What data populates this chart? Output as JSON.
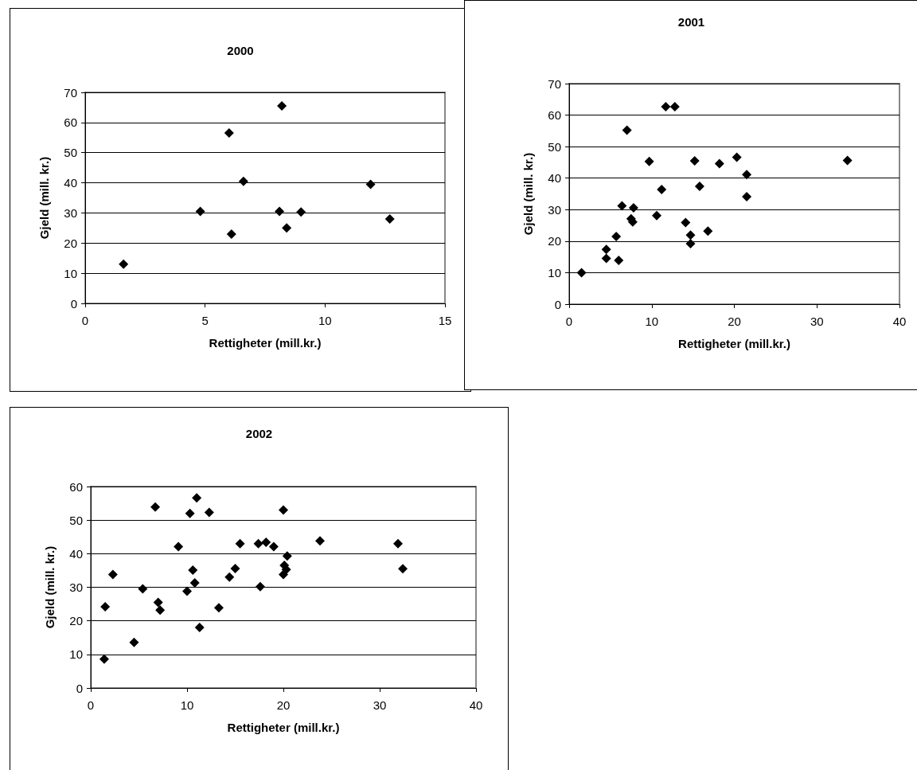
{
  "chart_data": [
    {
      "type": "scatter",
      "title": "2000",
      "xlabel": "Rettigheter (mill.kr.)",
      "ylabel": "Gjeld (mill. kr.)",
      "color": "#000000",
      "marker": "diamond",
      "grid": "y",
      "xlim": [
        0,
        15
      ],
      "ylim": [
        0,
        70
      ],
      "xticks": [
        0,
        5,
        10,
        15
      ],
      "yticks": [
        0,
        10,
        20,
        30,
        40,
        50,
        60,
        70
      ],
      "x": [
        1.6,
        4.8,
        6.0,
        6.1,
        6.6,
        8.0,
        8.1,
        8.2,
        8.4,
        9.0,
        11.9,
        12.7
      ],
      "values": [
        13,
        30.5,
        56.5,
        23,
        40.5,
        null,
        30.5,
        65.5,
        25,
        30.3,
        39.5,
        28
      ]
    },
    {
      "type": "scatter",
      "title": "2001",
      "xlabel": "Rettigheter (mill.kr.)",
      "ylabel": "Gjeld (mill. kr.)",
      "color": "#000000",
      "marker": "diamond",
      "grid": "y",
      "xlim": [
        0,
        40
      ],
      "ylim": [
        0,
        70
      ],
      "xticks": [
        0,
        10,
        20,
        30,
        40
      ],
      "yticks": [
        0,
        10,
        20,
        30,
        40,
        50,
        60,
        70
      ],
      "x": [
        1.5,
        4.5,
        4.5,
        6.0,
        5.7,
        6.4,
        7.8,
        7.5,
        7.7,
        7.0,
        9.7,
        10.6,
        11.2,
        11.7,
        12.8,
        14.1,
        14.7,
        14.7,
        15.2,
        15.8,
        16.8,
        18.2,
        20.3,
        21.5,
        21.5,
        33.7
      ],
      "values": [
        10,
        17.4,
        14.5,
        13.9,
        21.5,
        31.2,
        30.6,
        27.1,
        26.1,
        55.2,
        45.3,
        28.1,
        36.4,
        62.7,
        62.7,
        25.9,
        21.9,
        19.2,
        45.5,
        37.4,
        23.2,
        44.6,
        46.6,
        41.1,
        34.1,
        45.6
      ]
    },
    {
      "type": "scatter",
      "title": "2002",
      "xlabel": "Rettigheter (mill.kr.)",
      "ylabel": "Gjeld (mill. kr.)",
      "color": "#000000",
      "marker": "diamond",
      "grid": "y",
      "xlim": [
        0,
        40
      ],
      "ylim": [
        0,
        60
      ],
      "xticks": [
        0,
        10,
        20,
        30,
        40
      ],
      "yticks": [
        0,
        10,
        20,
        30,
        40,
        50,
        60
      ],
      "x": [
        1.4,
        1.5,
        2.3,
        4.5,
        5.4,
        7.0,
        7.2,
        6.7,
        9.1,
        10.0,
        10.3,
        10.6,
        10.8,
        11.0,
        11.3,
        12.3,
        13.3,
        14.4,
        15.0,
        15.5,
        17.4,
        17.6,
        18.2,
        19.0,
        20.0,
        20.0,
        20.1,
        20.3,
        20.4,
        23.8,
        31.9,
        32.4
      ],
      "values": [
        8.6,
        24.2,
        33.8,
        13.6,
        29.5,
        25.5,
        23.2,
        53.9,
        42.1,
        28.8,
        52.0,
        35.1,
        31.3,
        56.6,
        18.0,
        52.3,
        23.9,
        33.0,
        35.6,
        43.0,
        43.0,
        30.2,
        43.4,
        42.1,
        53.0,
        33.8,
        36.5,
        35.3,
        39.3,
        43.8,
        43.0,
        35.5
      ]
    }
  ]
}
